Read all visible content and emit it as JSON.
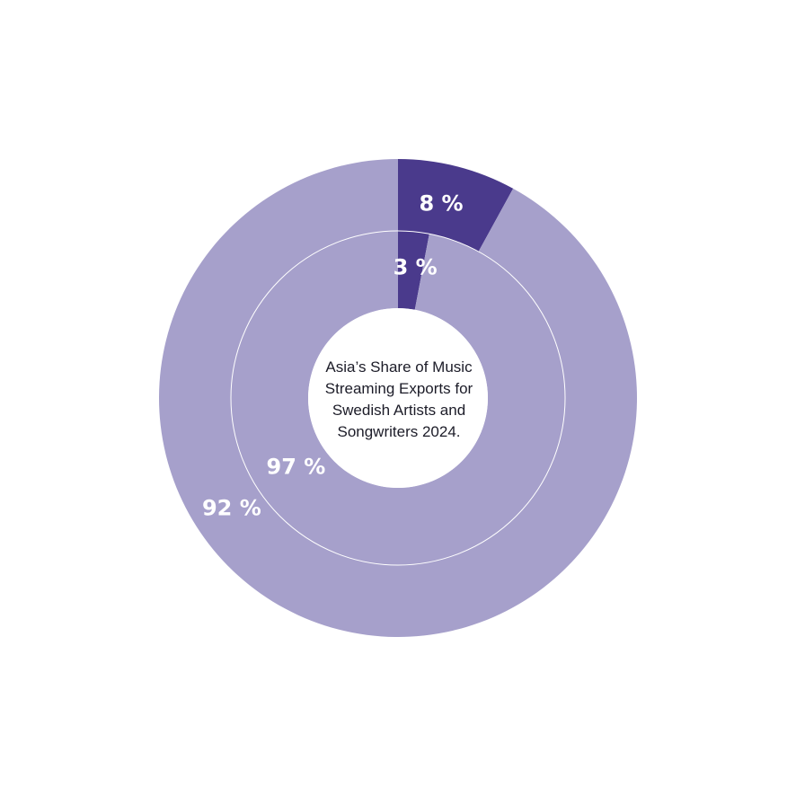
{
  "chart_data": {
    "type": "pie",
    "subtype": "nested-donut",
    "title": "Asia’s Share of Music Streaming Exports for Swedish Artists and Songwriters 2024.",
    "rings": [
      {
        "ring": "outer",
        "slices": [
          {
            "value": 8,
            "label": "8 %",
            "color": "#4a3a8c"
          },
          {
            "value": 92,
            "label": "92 %",
            "color": "#a6a0cb"
          }
        ]
      },
      {
        "ring": "inner",
        "slices": [
          {
            "value": 3,
            "label": "3 %",
            "color": "#4a3a8c"
          },
          {
            "value": 97,
            "label": "97 %",
            "color": "#a6a0cb"
          }
        ]
      }
    ],
    "legend": "none",
    "start_angle": "12 o'clock, clockwise"
  },
  "colors": {
    "asia": "#4a3a8c",
    "rest": "#a6a0cb",
    "ring_separator": "#ffffff",
    "label_text": "#ffffff"
  }
}
